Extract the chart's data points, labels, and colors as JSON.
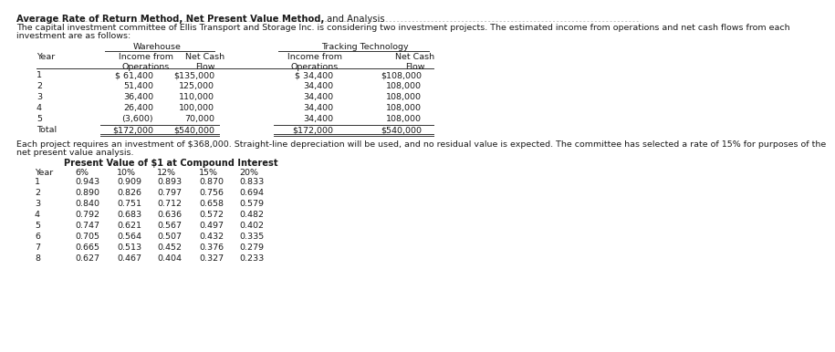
{
  "title_bold": "Average Rate of Return Method, Net Present Value Method,",
  "title_normal": " and Analysis",
  "intro_line1": "The capital investment committee of Ellis Transport and Storage Inc. is considering two investment projects. The estimated income from operations and net cash flows from each",
  "intro_line2": "investment are as follows:",
  "table1_group1": "Warehouse",
  "table1_group2": "Tracking Technology",
  "table1_sub_headers": [
    "Year",
    "Income from\nOperations",
    "Net Cash\nFlow",
    "Income from\nOperations",
    "Net Cash\nFlow"
  ],
  "table1_rows": [
    [
      "1",
      "$ 61,400",
      "$135,000",
      "$ 34,400",
      "$108,000"
    ],
    [
      "2",
      "51,400",
      "125,000",
      "34,400",
      "108,000"
    ],
    [
      "3",
      "36,400",
      "110,000",
      "34,400",
      "108,000"
    ],
    [
      "4",
      "26,400",
      "100,000",
      "34,400",
      "108,000"
    ],
    [
      "5",
      "(3,600)",
      "70,000",
      "34,400",
      "108,000"
    ],
    [
      "Total",
      "$172,000",
      "$540,000",
      "$172,000",
      "$540,000"
    ]
  ],
  "middle_line1": "Each project requires an investment of $368,000. Straight-line depreciation will be used, and no residual value is expected. The committee has selected a rate of 15% for purposes of the",
  "middle_line2": "net present value analysis.",
  "table2_title": "Present Value of $1 at Compound Interest",
  "table2_col_headers": [
    "Year",
    "6%",
    "10%",
    "12%",
    "15%",
    "20%"
  ],
  "table2_rows": [
    [
      "1",
      "0.943",
      "0.909",
      "0.893",
      "0.870",
      "0.833"
    ],
    [
      "2",
      "0.890",
      "0.826",
      "0.797",
      "0.756",
      "0.694"
    ],
    [
      "3",
      "0.840",
      "0.751",
      "0.712",
      "0.658",
      "0.579"
    ],
    [
      "4",
      "0.792",
      "0.683",
      "0.636",
      "0.572",
      "0.482"
    ],
    [
      "5",
      "0.747",
      "0.621",
      "0.567",
      "0.497",
      "0.402"
    ],
    [
      "6",
      "0.705",
      "0.564",
      "0.507",
      "0.432",
      "0.335"
    ],
    [
      "7",
      "0.665",
      "0.513",
      "0.452",
      "0.376",
      "0.279"
    ],
    [
      "8",
      "0.627",
      "0.467",
      "0.404",
      "0.327",
      "0.233"
    ]
  ],
  "bg_color": "#ffffff",
  "text_color": "#1a1a1a",
  "font_size_title": 7.2,
  "font_size_body": 6.8,
  "font_size_table": 6.8
}
